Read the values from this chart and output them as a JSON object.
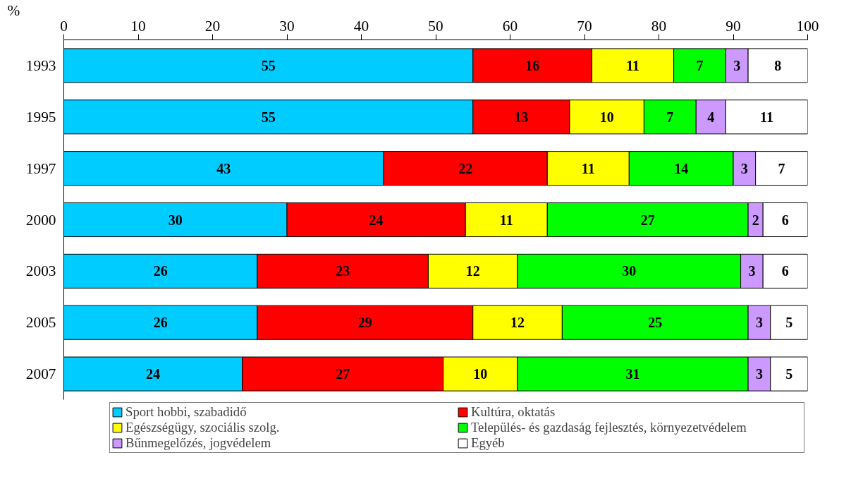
{
  "chart_data": {
    "type": "bar",
    "orientation": "horizontal",
    "stacked": true,
    "xlabel": "%",
    "categories": [
      "1993",
      "1995",
      "1997",
      "2000",
      "2003",
      "2005",
      "2007"
    ],
    "series": [
      {
        "name": "Sport hobbi, szabadidő",
        "color": "#00ccff",
        "values": [
          55,
          55,
          43,
          30,
          26,
          26,
          24
        ]
      },
      {
        "name": "Kultúra, oktatás",
        "color": "#ff0000",
        "values": [
          16,
          13,
          22,
          24,
          23,
          29,
          27
        ]
      },
      {
        "name": "Egészségügy, szociális szolg.",
        "color": "#ffff00",
        "values": [
          11,
          10,
          11,
          11,
          12,
          12,
          10
        ]
      },
      {
        "name": "Település- és gazdaság fejlesztés, környezetvédelem",
        "color": "#00ff00",
        "values": [
          7,
          7,
          14,
          27,
          30,
          25,
          31
        ]
      },
      {
        "name": "Bűnmegelőzés, jogvédelem",
        "color": "#cc99ff",
        "values": [
          3,
          4,
          3,
          2,
          3,
          3,
          3
        ]
      },
      {
        "name": "Egyéb",
        "color": "#ffffff",
        "values": [
          8,
          11,
          7,
          6,
          6,
          5,
          5
        ]
      }
    ],
    "xlim": [
      0,
      100
    ],
    "xticks": [
      0,
      10,
      20,
      30,
      40,
      50,
      60,
      70,
      80,
      90,
      100
    ],
    "data_labels": true,
    "grid": false,
    "legend": "bottom"
  }
}
